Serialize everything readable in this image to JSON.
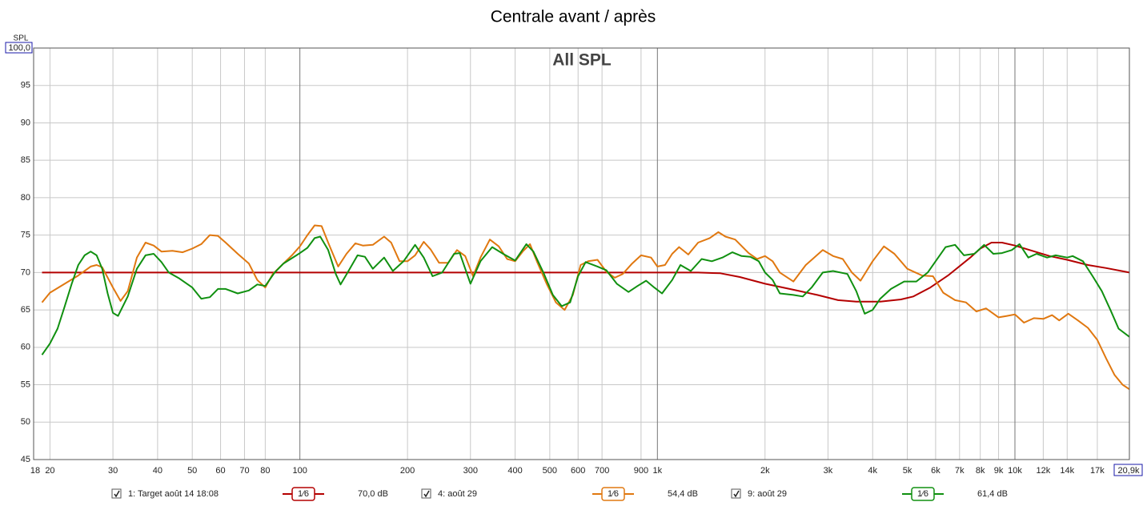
{
  "chart_data": {
    "type": "line",
    "title": "Centrale avant / après",
    "subtitle": "All SPL",
    "y_label": "SPL",
    "log_x": true,
    "grid": true,
    "xlim": [
      18,
      20900
    ],
    "ylim": [
      45,
      100
    ],
    "xticks": [
      18,
      20,
      30,
      40,
      50,
      60,
      70,
      80,
      100,
      200,
      300,
      400,
      500,
      600,
      700,
      900,
      {
        "value": 1000,
        "label": "1k"
      },
      {
        "value": 2000,
        "label": "2k"
      },
      {
        "value": 3000,
        "label": "3k"
      },
      {
        "value": 4000,
        "label": "4k"
      },
      {
        "value": 5000,
        "label": "5k"
      },
      {
        "value": 6000,
        "label": "6k"
      },
      {
        "value": 7000,
        "label": "7k"
      },
      {
        "value": 8000,
        "label": "8k"
      },
      {
        "value": 9000,
        "label": "9k"
      },
      {
        "value": 10000,
        "label": "10k"
      },
      {
        "value": 12000,
        "label": "12k"
      },
      {
        "value": 14000,
        "label": "14k"
      },
      {
        "value": 17000,
        "label": "17k"
      },
      {
        "value": 20900,
        "label": "20,9k"
      }
    ],
    "yticks": [
      45,
      50,
      55,
      60,
      65,
      70,
      75,
      80,
      85,
      90,
      95,
      {
        "value": 100,
        "label": "100,0"
      }
    ],
    "series": [
      {
        "name": "1: Target août 14 18:08",
        "color": "#b40000",
        "smoothing": "1⁄6",
        "level": "70,0 dB",
        "x": [
          19,
          100,
          1000,
          1300,
          1500,
          1700,
          2000,
          2400,
          2800,
          3200,
          3600,
          4200,
          4800,
          5200,
          5800,
          6500,
          7500,
          8000,
          8600,
          9200,
          10000,
          11000,
          12500,
          14000,
          16000,
          18000,
          20900
        ],
        "values": [
          70,
          70,
          70,
          70,
          69.9,
          69.4,
          68.5,
          67.7,
          67.0,
          66.3,
          66.1,
          66.1,
          66.4,
          66.8,
          68.0,
          69.6,
          72.0,
          73.2,
          74.0,
          74.0,
          73.6,
          73.0,
          72.2,
          71.7,
          71.0,
          70.6,
          70.0
        ]
      },
      {
        "name": "4: août 29",
        "color": "#e07810",
        "smoothing": "1⁄6",
        "level": "54,4 dB",
        "x": [
          19,
          20,
          22,
          24,
          26,
          27,
          28,
          30,
          31.5,
          33,
          35,
          37,
          39,
          41,
          44,
          47,
          50,
          53,
          56,
          59,
          62,
          67,
          72,
          76,
          80,
          84,
          90,
          95,
          100,
          105,
          110,
          115,
          120,
          128,
          135,
          143,
          150,
          160,
          172,
          180,
          190,
          200,
          210,
          222,
          232,
          245,
          260,
          275,
          290,
          305,
          320,
          340,
          360,
          380,
          400,
          420,
          440,
          460,
          490,
          520,
          550,
          580,
          610,
          640,
          680,
          720,
          760,
          800,
          850,
          900,
          960,
          1000,
          1050,
          1100,
          1150,
          1220,
          1300,
          1400,
          1480,
          1550,
          1650,
          1800,
          1900,
          2000,
          2100,
          2200,
          2400,
          2600,
          2900,
          3100,
          3300,
          3500,
          3700,
          4000,
          4300,
          4600,
          5000,
          5500,
          5900,
          6300,
          6800,
          7300,
          7800,
          8300,
          9000,
          9500,
          10000,
          10600,
          11300,
          12000,
          12700,
          13300,
          14100,
          15000,
          16000,
          17000,
          18000,
          19000,
          20000,
          20900
        ],
        "values": [
          66,
          67.3,
          68.5,
          69.6,
          70.8,
          71.0,
          70.7,
          68.0,
          66.2,
          67.5,
          72.0,
          74.0,
          73.6,
          72.8,
          72.9,
          72.7,
          73.2,
          73.8,
          75.0,
          74.9,
          74.0,
          72.5,
          71.2,
          69.0,
          68.0,
          69.8,
          71.2,
          72.3,
          73.5,
          75.0,
          76.3,
          76.2,
          74.0,
          70.8,
          72.5,
          73.9,
          73.6,
          73.7,
          74.8,
          74.0,
          71.5,
          71.5,
          72.3,
          74.1,
          73.1,
          71.3,
          71.3,
          73.0,
          72.2,
          69.5,
          72.0,
          74.4,
          73.5,
          71.8,
          71.5,
          72.8,
          73.8,
          71.5,
          68.5,
          66.0,
          65.0,
          67.0,
          71.0,
          71.5,
          71.7,
          70.1,
          69.3,
          69.8,
          71.2,
          72.3,
          72.0,
          70.8,
          71.0,
          72.5,
          73.4,
          72.4,
          74.0,
          74.6,
          75.4,
          74.8,
          74.4,
          72.6,
          71.8,
          72.2,
          71.5,
          70.0,
          68.8,
          71.0,
          73.0,
          72.2,
          71.8,
          70.0,
          68.9,
          71.5,
          73.5,
          72.5,
          70.5,
          69.6,
          69.5,
          67.3,
          66.3,
          66.0,
          64.8,
          65.2,
          64.0,
          64.2,
          64.4,
          63.3,
          63.9,
          63.8,
          64.3,
          63.6,
          64.5,
          63.6,
          62.6,
          61.0,
          58.5,
          56.3,
          55.0,
          54.4
        ]
      },
      {
        "name": "9: août 29",
        "color": "#109010",
        "smoothing": "1⁄6",
        "level": "61,4 dB",
        "x": [
          19,
          20,
          21,
          22,
          23,
          24,
          25,
          26,
          27,
          28,
          29,
          30,
          31,
          33,
          35,
          37,
          39,
          41,
          43,
          46,
          50,
          53,
          56,
          59,
          62,
          67,
          72,
          76,
          80,
          85,
          90,
          100,
          105,
          110,
          114,
          120,
          126,
          130,
          136,
          145,
          152,
          160,
          172,
          182,
          195,
          210,
          222,
          235,
          250,
          270,
          280,
          300,
          320,
          345,
          370,
          400,
          430,
          450,
          480,
          510,
          540,
          570,
          600,
          630,
          680,
          720,
          770,
          830,
          880,
          930,
          980,
          1030,
          1100,
          1160,
          1240,
          1330,
          1420,
          1520,
          1620,
          1720,
          1820,
          1920,
          2000,
          2100,
          2200,
          2400,
          2550,
          2700,
          2900,
          3100,
          3400,
          3600,
          3800,
          4000,
          4200,
          4500,
          4900,
          5300,
          5700,
          6000,
          6400,
          6800,
          7200,
          7700,
          8200,
          8700,
          9200,
          9800,
          10300,
          10900,
          11500,
          12300,
          13000,
          14000,
          14500,
          15500,
          16500,
          17500,
          18500,
          19500,
          20900
        ],
        "values": [
          59.0,
          60.5,
          62.5,
          65.5,
          68.5,
          71.0,
          72.3,
          72.8,
          72.3,
          70.5,
          67.2,
          64.6,
          64.2,
          66.8,
          70.5,
          72.3,
          72.5,
          71.4,
          70.0,
          69.2,
          68.0,
          66.5,
          66.7,
          67.8,
          67.8,
          67.2,
          67.6,
          68.4,
          68.2,
          70.0,
          71.2,
          72.6,
          73.3,
          74.6,
          74.8,
          73.0,
          69.8,
          68.4,
          70.0,
          72.3,
          72.1,
          70.5,
          72.0,
          70.2,
          71.5,
          73.7,
          72.0,
          69.5,
          70.0,
          72.5,
          72.6,
          68.5,
          71.5,
          73.4,
          72.5,
          71.6,
          73.8,
          72.8,
          70.0,
          67.0,
          65.5,
          66.0,
          69.5,
          71.4,
          70.8,
          70.3,
          68.5,
          67.4,
          68.2,
          68.9,
          68.0,
          67.2,
          69.0,
          71.0,
          70.2,
          71.8,
          71.5,
          72.0,
          72.7,
          72.2,
          72.1,
          71.5,
          70.0,
          69.0,
          67.2,
          67.0,
          66.8,
          68.0,
          70.0,
          70.2,
          69.8,
          67.5,
          64.5,
          65.0,
          66.5,
          67.8,
          68.8,
          68.8,
          70.0,
          71.5,
          73.4,
          73.7,
          72.3,
          72.5,
          73.7,
          72.5,
          72.6,
          73.0,
          73.8,
          72.0,
          72.5,
          72.0,
          72.3,
          72.0,
          72.2,
          71.5,
          69.5,
          67.5,
          65.0,
          62.5,
          61.4
        ]
      }
    ]
  }
}
